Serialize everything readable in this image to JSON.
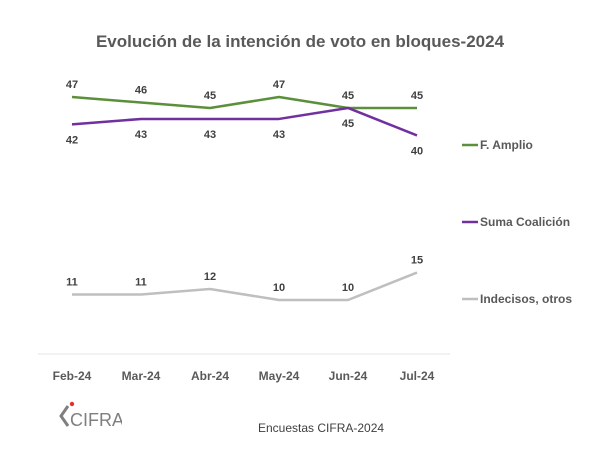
{
  "chart_data": {
    "type": "line",
    "title": "Evolución de la intención de voto en bloques-2024",
    "categories": [
      "Feb-24",
      "Mar-24",
      "Abr-24",
      "May-24",
      "Jun-24",
      "Jul-24"
    ],
    "series": [
      {
        "name": "F. Amplio",
        "values": [
          47,
          46,
          45,
          47,
          45,
          45
        ],
        "color": "#5b8f3a",
        "label_pos": "above"
      },
      {
        "name": "Suma Coalición",
        "values": [
          42,
          43,
          43,
          43,
          45,
          40
        ],
        "color": "#7030a0",
        "label_pos": "below"
      },
      {
        "name": "Indecisos, otros",
        "values": [
          11,
          11,
          12,
          10,
          10,
          15
        ],
        "color": "#bfbfbf",
        "label_pos": "above"
      }
    ],
    "xlabel": "",
    "ylabel": "",
    "ylim": [
      3,
      49
    ],
    "grid": false,
    "legend": "right"
  },
  "footer": {
    "source": "Encuestas CIFRA-2024",
    "logo_text": "CIFRA"
  }
}
